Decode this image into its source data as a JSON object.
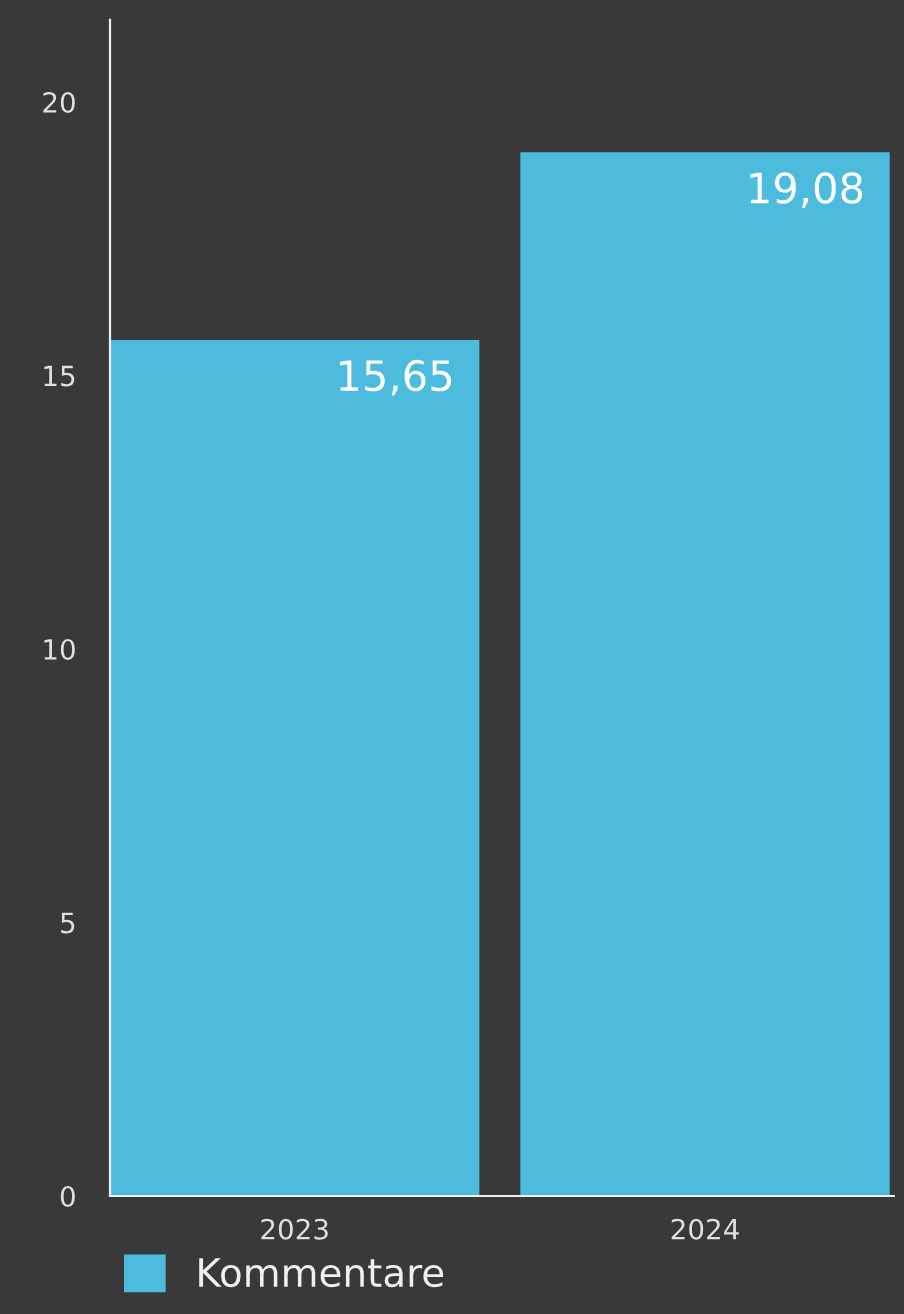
{
  "chart_data": {
    "type": "bar",
    "categories": [
      "2023",
      "2024"
    ],
    "series": [
      {
        "name": "Kommentare",
        "color": "#4dbbde",
        "values": [
          15.65,
          19.08
        ],
        "value_labels": [
          "15,65",
          "19,08"
        ]
      }
    ],
    "ylim": [
      0,
      21.5
    ],
    "yticks": [
      0,
      5,
      10,
      15,
      20
    ],
    "grid": false,
    "legend": "bottom left"
  }
}
